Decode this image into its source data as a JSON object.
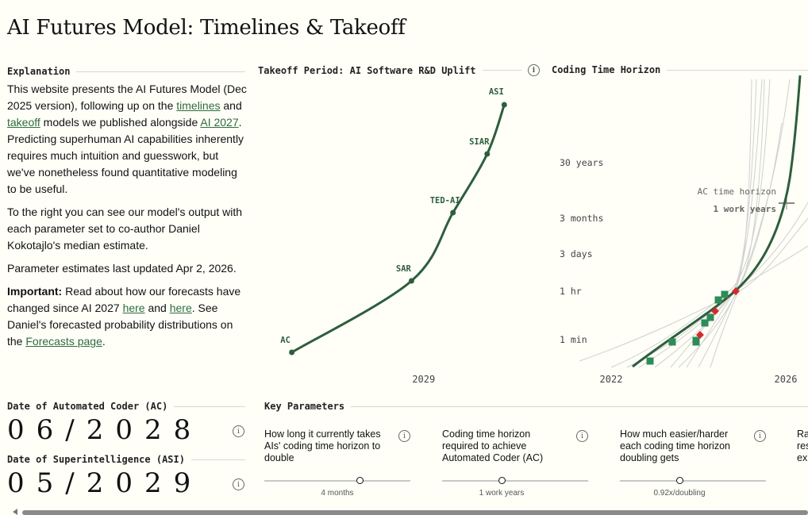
{
  "page": {
    "title": "AI Futures Model: Timelines & Takeoff"
  },
  "explanation": {
    "heading": "Explanation",
    "p1_a": "This website presents the AI Futures Model (Dec 2025 version), following up on the ",
    "link_timelines": "timelines",
    "p1_b": " and ",
    "link_takeoff": "takeoff",
    "p1_c": " models we published alongside ",
    "link_ai2027": "AI 2027",
    "p1_d": ". Predicting superhuman AI capabilities inherently requires much intuition and guesswork, but we've nonetheless found quantitative modeling to be useful.",
    "p2": "To the right you can see our model's output with each parameter set to co-author Daniel Kokotajlo's median estimate.",
    "p3": "Parameter estimates last updated Apr 2, 2026.",
    "p4_bold": "Important:",
    "p4_a": " Read about how our forecasts have changed since AI 2027 ",
    "link_here1": "here",
    "p4_b": " and ",
    "link_here2": "here",
    "p4_c": ". See Daniel's forecasted probability distributions on the ",
    "link_forecasts": "Forecasts page",
    "p4_d": "."
  },
  "takeoff_title": "Takeoff Period: AI Software R&D Uplift",
  "horizon_title": "Coding Time Horizon",
  "chart_data": [
    {
      "type": "line",
      "title": "Takeoff Period: AI Software R&D Uplift",
      "x_tick_labels": [
        "2029"
      ],
      "milestones": [
        {
          "label": "AC",
          "x": 2028.46,
          "y": 0
        },
        {
          "label": "SAR",
          "x": 2028.95,
          "y": 1
        },
        {
          "label": "TED-AI",
          "x": 2029.12,
          "y": 2
        },
        {
          "label": "SIAR",
          "x": 2029.26,
          "y": 3
        },
        {
          "label": "ASI",
          "x": 2029.33,
          "y": 4
        }
      ],
      "grid": false
    },
    {
      "type": "line",
      "title": "Coding Time Horizon",
      "y_scale": "log",
      "y_tick_labels": [
        "30 years",
        "3 months",
        "3 days",
        "1 hr",
        "1 min"
      ],
      "x_tick_labels": [
        "2022",
        "2026"
      ],
      "annotation": {
        "label": "AC time horizon",
        "value": "1 work years"
      },
      "series": [
        {
          "marker": "square",
          "color": "#2e8b57",
          "points": [
            {
              "x": 2022.6,
              "y": "1 min"
            },
            {
              "x": 2023.0,
              "y": "1 min"
            },
            {
              "x": 2023.6,
              "y": "1 min"
            },
            {
              "x": 2024.4,
              "y": "1 min"
            },
            {
              "x": 2024.5,
              "y": "1 hr"
            },
            {
              "x": 2024.8,
              "y": "1 hr"
            },
            {
              "x": 2025.0,
              "y": "1 hr"
            },
            {
              "x": 2025.2,
              "y": "1 hr"
            }
          ]
        },
        {
          "marker": "diamond",
          "color": "#d42a2a",
          "points": [
            {
              "x": 2024.6,
              "y": "1 min"
            },
            {
              "x": 2025.0,
              "y": "1 hr"
            },
            {
              "x": 2025.9,
              "y": "1 hr"
            }
          ]
        }
      ]
    }
  ],
  "ac": {
    "label": "Date of Automated Coder (AC)",
    "value": "06/2028"
  },
  "asi": {
    "label": "Date of Superintelligence (ASI)",
    "value": "05/2029"
  },
  "params": {
    "heading": "Key Parameters",
    "items": [
      {
        "label": "How long it currently takes AIs' coding time horizon to double",
        "value": "4 months",
        "level": 0.65
      },
      {
        "label": "Coding time horizon required to achieve Automated Coder (AC)",
        "value": "1 work years",
        "level": 0.41
      },
      {
        "label": "How much easier/harder each coding time horizon doubling gets",
        "value": "0.92x/doubling",
        "level": 0.41
      },
      {
        "label": "Ra res ex",
        "value": "",
        "level": 0
      }
    ]
  },
  "icons": {
    "info": "i"
  },
  "colors": {
    "line": "#2e5e3c",
    "accent": "#2e8b57",
    "marker_red": "#d42a2a",
    "link": "#2e6b3f"
  }
}
